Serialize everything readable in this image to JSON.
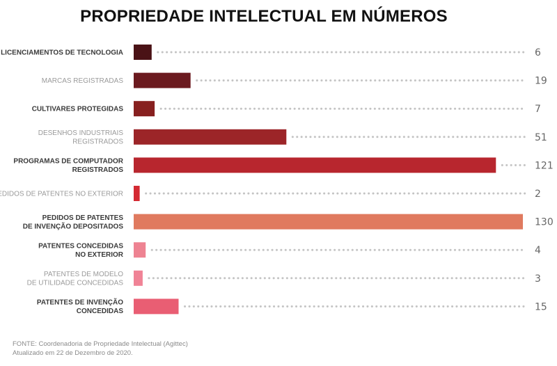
{
  "chart_data": {
    "type": "bar",
    "orientation": "horizontal",
    "title": "PROPRIEDADE INTELECTUAL EM NÚMEROS",
    "categories": [
      "LICENCIAMENTOS DE TECNOLOGIA",
      "MARCAS REGISTRADAS",
      "CULTIVARES PROTEGIDAS",
      "DESENHOS INDUSTRIAIS\nREGISTRADOS",
      "PROGRAMAS DE COMPUTADOR\nREGISTRADOS",
      "PEDIDOS DE PATENTES NO EXTERIOR",
      "PEDIDOS DE PATENTES\nDE INVENÇÃO DEPOSITADOS",
      "PATENTES CONCEDIDAS\nNO EXTERIOR",
      "PATENTES DE MODELO\nDE UTILIDADE CONCEDIDAS",
      "PATENTES DE INVENÇÃO\nCONCEDIDAS"
    ],
    "values": [
      6,
      19,
      7,
      51,
      121,
      2,
      130,
      4,
      3,
      15
    ],
    "label_styles": [
      "bold",
      "light",
      "bold",
      "light",
      "bold",
      "light",
      "bold",
      "bold",
      "light",
      "bold"
    ],
    "colors": [
      "#4a1216",
      "#6b1a1f",
      "#87201f",
      "#9c2528",
      "#b8262e",
      "#d42a33",
      "#e07a5f",
      "#ee8392",
      "#f08396",
      "#e95e73"
    ],
    "xlim": [
      0,
      130
    ],
    "grid": false,
    "legend": "none",
    "leader_lines": "dotted",
    "leader_color": "#c4c4c4"
  },
  "footer": {
    "source": "FONTE: Coordenadoria de Propriedade Intelectual (Agittec)",
    "updated": "Atualizado em 22 de Dezembro de 2020."
  }
}
